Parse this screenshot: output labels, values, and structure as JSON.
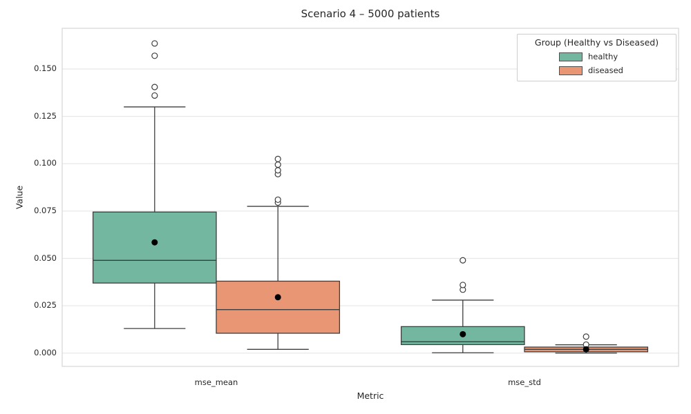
{
  "colors": {
    "healthy": "#74b7a1",
    "diseased": "#e89673",
    "box_edge": "#3d3d3d",
    "grid": "#e8e8e8",
    "spine": "#d9d9d9",
    "text": "#262626",
    "mean_dot": "#000000",
    "outlier_edge": "#3d3d3d"
  },
  "legend": {
    "title": "Group (Healthy vs Diseased)",
    "entries": [
      {
        "label": "healthy",
        "color": "#74b7a1"
      },
      {
        "label": "diseased",
        "color": "#e89673"
      }
    ]
  },
  "chart_data": {
    "type": "boxplot",
    "title": "Scenario 4 – 5000 patients",
    "xlabel": "Metric",
    "ylabel": "Value",
    "categories": [
      "mse_mean",
      "mse_std"
    ],
    "groups": [
      "healthy",
      "diseased"
    ],
    "ylim": [
      -0.007,
      0.1715
    ],
    "yticks": [
      0.0,
      0.025,
      0.05,
      0.075,
      0.1,
      0.125,
      0.15
    ],
    "grid": "horizontal",
    "legend_position": "upper right",
    "series": [
      {
        "name": "healthy",
        "color": "#74b7a1",
        "boxes": [
          {
            "category": "mse_mean",
            "whisker_low": 0.013,
            "q1": 0.037,
            "median": 0.049,
            "q3": 0.0745,
            "whisker_high": 0.13,
            "mean": 0.0585,
            "outliers": [
              0.136,
              0.1405,
              0.157,
              0.1635
            ]
          },
          {
            "category": "mse_std",
            "whisker_low": 0.0002,
            "q1": 0.0045,
            "median": 0.006,
            "q3": 0.014,
            "whisker_high": 0.028,
            "mean": 0.01,
            "outliers": [
              0.0335,
              0.036,
              0.049
            ]
          }
        ]
      },
      {
        "name": "diseased",
        "color": "#e89673",
        "boxes": [
          {
            "category": "mse_mean",
            "whisker_low": 0.002,
            "q1": 0.0105,
            "median": 0.023,
            "q3": 0.038,
            "whisker_high": 0.0775,
            "mean": 0.0295,
            "outliers": [
              0.0795,
              0.081,
              0.0945,
              0.0965,
              0.0995,
              0.1025
            ]
          },
          {
            "category": "mse_std",
            "whisker_low": 0.0,
            "q1": 0.0007,
            "median": 0.002,
            "q3": 0.0032,
            "whisker_high": 0.0044,
            "mean": 0.002,
            "outliers": [
              0.0045,
              0.0087
            ]
          }
        ]
      }
    ]
  }
}
